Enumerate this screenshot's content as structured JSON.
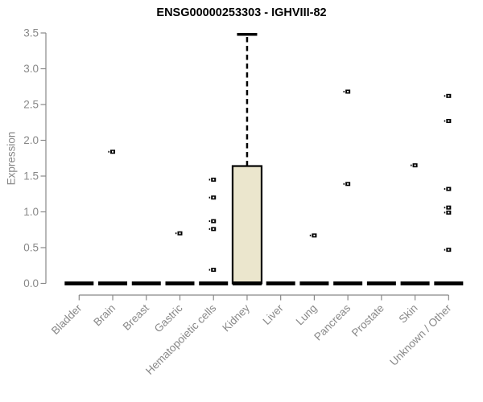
{
  "chart_data": {
    "type": "boxplot",
    "title": "ENSG00000253303 - IGHVIII-82",
    "ylabel": "Expression",
    "xlabel": "",
    "ylim": [
      0,
      3.5
    ],
    "yticks": [
      "0.0",
      "0.5",
      "1.0",
      "1.5",
      "2.0",
      "2.5",
      "3.0",
      "3.5"
    ],
    "grid": "off",
    "legend": "none",
    "categories": [
      "Bladder",
      "Brain",
      "Breast",
      "Gastric",
      "Hematopoietic cells",
      "Kidney",
      "Liver",
      "Lung",
      "Pancreas",
      "Prostate",
      "Skin",
      "Unknown / Other"
    ],
    "boxes": [
      {
        "category": "Bladder",
        "q1": 0,
        "median": 0,
        "q3": 0,
        "whisker_low": 0,
        "whisker_high": 0,
        "outliers": []
      },
      {
        "category": "Brain",
        "q1": 0,
        "median": 0,
        "q3": 0,
        "whisker_low": 0,
        "whisker_high": 0,
        "outliers": [
          1.84
        ]
      },
      {
        "category": "Breast",
        "q1": 0,
        "median": 0,
        "q3": 0,
        "whisker_low": 0,
        "whisker_high": 0,
        "outliers": []
      },
      {
        "category": "Gastric",
        "q1": 0,
        "median": 0,
        "q3": 0,
        "whisker_low": 0,
        "whisker_high": 0,
        "outliers": [
          0.7
        ]
      },
      {
        "category": "Hematopoietic cells",
        "q1": 0,
        "median": 0,
        "q3": 0,
        "whisker_low": 0,
        "whisker_high": 0,
        "outliers": [
          1.45,
          1.2,
          0.87,
          0.76,
          0.19
        ]
      },
      {
        "category": "Kidney",
        "q1": 0,
        "median": 0,
        "q3": 1.64,
        "whisker_low": 0,
        "whisker_high": 3.48,
        "outliers": []
      },
      {
        "category": "Liver",
        "q1": 0,
        "median": 0,
        "q3": 0,
        "whisker_low": 0,
        "whisker_high": 0,
        "outliers": []
      },
      {
        "category": "Lung",
        "q1": 0,
        "median": 0,
        "q3": 0,
        "whisker_low": 0,
        "whisker_high": 0,
        "outliers": [
          0.67
        ]
      },
      {
        "category": "Pancreas",
        "q1": 0,
        "median": 0,
        "q3": 0,
        "whisker_low": 0,
        "whisker_high": 0,
        "outliers": [
          2.68,
          1.39
        ]
      },
      {
        "category": "Prostate",
        "q1": 0,
        "median": 0,
        "q3": 0,
        "whisker_low": 0,
        "whisker_high": 0,
        "outliers": []
      },
      {
        "category": "Skin",
        "q1": 0,
        "median": 0,
        "q3": 0,
        "whisker_low": 0,
        "whisker_high": 0,
        "outliers": [
          1.65
        ]
      },
      {
        "category": "Unknown / Other",
        "q1": 0,
        "median": 0,
        "q3": 0,
        "whisker_low": 0,
        "whisker_high": 0,
        "outliers": [
          2.62,
          2.27,
          1.32,
          1.06,
          0.99,
          0.47
        ]
      }
    ],
    "colors": {
      "box_fill": "#EBE6CD",
      "box_stroke": "#000000",
      "median": "#000000",
      "whisker": "#000000",
      "outlier_marker": "#000000",
      "axis": "#888888",
      "tick_label": "#888888",
      "title": "#000000",
      "background": "#FFFFFF"
    }
  }
}
